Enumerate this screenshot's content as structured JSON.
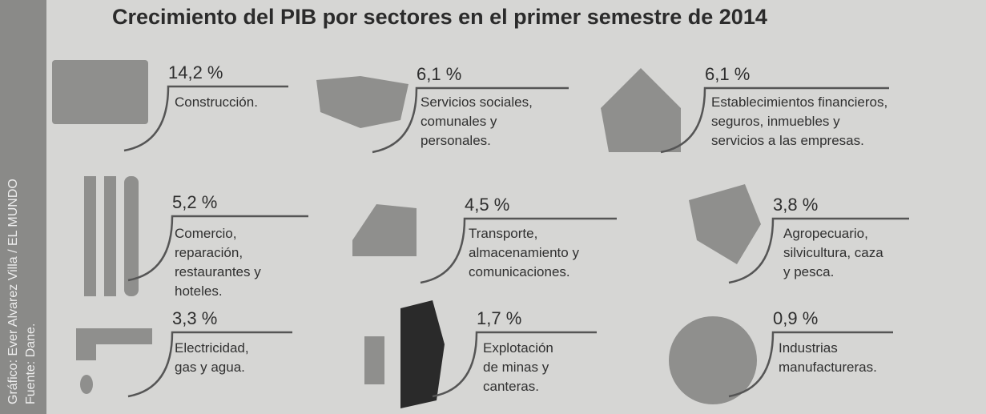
{
  "header": {
    "title": "Crecimiento del PIB por sectores en el primer semestre de 2014"
  },
  "credits": {
    "graphic": "Gráfico: Ever Alvarez Villa / EL MUNDO",
    "source": "Fuente: Dane."
  },
  "items": [
    {
      "value": "14,2 %",
      "lines": [
        "Construcción."
      ]
    },
    {
      "value": "6,1 %",
      "lines": [
        "Servicios sociales,",
        "comunales y",
        "personales."
      ]
    },
    {
      "value": "6,1 %",
      "lines": [
        "Establecimientos financieros,",
        "seguros, inmuebles y",
        "servicios a las empresas."
      ]
    },
    {
      "value": "5,2 %",
      "lines": [
        "Comercio,",
        "reparación,",
        "restaurantes y",
        "hoteles."
      ]
    },
    {
      "value": "4,5 %",
      "lines": [
        "Transporte,",
        "almacenamiento y",
        "comunicaciones."
      ]
    },
    {
      "value": "3,8 %",
      "lines": [
        "Agropecuario,",
        "silvicultura, caza",
        "y pesca."
      ]
    },
    {
      "value": "3,3 %",
      "lines": [
        "Electricidad,",
        "gas y agua."
      ]
    },
    {
      "value": "1,7 %",
      "lines": [
        "Explotación",
        "de minas y",
        "canteras."
      ]
    },
    {
      "value": "0,9 %",
      "lines": [
        "Industrias",
        "manufactureras."
      ]
    }
  ]
}
